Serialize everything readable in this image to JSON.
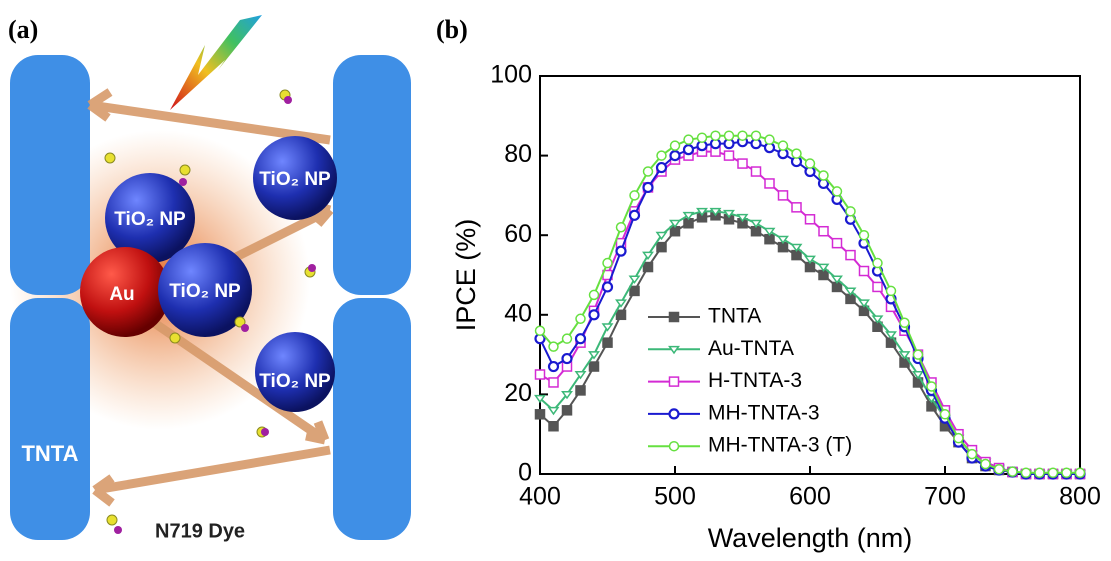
{
  "panel_labels": [
    "(a)",
    "(b)"
  ],
  "schematic": {
    "labels": [
      "TiO₂ NP",
      "TiO₂ NP",
      "TiO₂ NP",
      "TiO₂ NP",
      "Au",
      "TNTA",
      "N719 Dye"
    ]
  },
  "chart_data": {
    "type": "line",
    "x_label": "Wavelength (nm)",
    "y_label": "IPCE (%)",
    "x": [
      400,
      410,
      420,
      430,
      440,
      450,
      460,
      470,
      480,
      490,
      500,
      510,
      520,
      530,
      540,
      550,
      560,
      570,
      580,
      590,
      600,
      610,
      620,
      630,
      640,
      650,
      660,
      670,
      680,
      690,
      700,
      710,
      720,
      730,
      740,
      750,
      760,
      770,
      780,
      790,
      800
    ],
    "xlim": [
      400,
      800
    ],
    "xticks": [
      400,
      500,
      600,
      700,
      800
    ],
    "ylim": [
      0,
      100
    ],
    "yticks": [
      0,
      20,
      40,
      60,
      80,
      100
    ],
    "grid": false,
    "legend": "lower left",
    "series": [
      {
        "name": "TNTA",
        "color": "#555555",
        "marker": "square-filled",
        "values": [
          15,
          12,
          16,
          21,
          27,
          33,
          40,
          46,
          52,
          57,
          61,
          63,
          64.5,
          65,
          64,
          63,
          61,
          59,
          57,
          55,
          52,
          50,
          47,
          44,
          41,
          37,
          33,
          28,
          23,
          17,
          12,
          8,
          4,
          2,
          1,
          0.5,
          0,
          0,
          0,
          0,
          0
        ]
      },
      {
        "name": "Au-TNTA",
        "color": "#3cb878",
        "marker": "triangle-open",
        "values": [
          19,
          16,
          20,
          25,
          30,
          37,
          43,
          49,
          55,
          60,
          63,
          65,
          66,
          66,
          65.5,
          64.5,
          63,
          61,
          59,
          57,
          54,
          52,
          49,
          46,
          43,
          39,
          35,
          30,
          25,
          19,
          14,
          9,
          5,
          3,
          1.5,
          0.5,
          0,
          0,
          0,
          0,
          0
        ]
      },
      {
        "name": "H-TNTA-3",
        "color": "#d42ad4",
        "marker": "square-open",
        "values": [
          25,
          23,
          27,
          33,
          41,
          50,
          58,
          66,
          72,
          76,
          79,
          80,
          81,
          81,
          80,
          78,
          76,
          73,
          70,
          67,
          64,
          61,
          58,
          55,
          51,
          47,
          42,
          36,
          30,
          23,
          16,
          10,
          6,
          3,
          1.5,
          0.5,
          0,
          0,
          0,
          0,
          0
        ]
      },
      {
        "name": "MH-TNTA-3",
        "color": "#1a1ad0",
        "marker": "circle-half",
        "values": [
          34,
          27,
          29,
          34,
          40,
          47,
          56,
          65,
          72,
          77,
          80,
          81.5,
          82.5,
          83,
          83,
          83.5,
          83,
          82,
          80.5,
          78.5,
          76,
          73,
          69,
          64,
          58,
          51,
          44,
          37,
          29,
          21,
          14,
          8,
          4,
          2,
          1,
          0.5,
          0,
          0,
          0,
          0,
          0
        ]
      },
      {
        "name": "MH-TNTA-3 (T)",
        "color": "#66e040",
        "marker": "circle-open",
        "values": [
          36,
          32,
          34,
          39,
          45,
          53,
          62,
          70,
          76,
          80,
          82.5,
          84,
          84.5,
          85,
          85,
          85,
          85,
          84,
          82.5,
          80.5,
          78,
          75,
          71,
          66,
          60,
          53,
          46,
          38,
          30,
          22,
          15,
          9,
          5,
          2.5,
          1.2,
          0.6,
          0.3,
          0.3,
          0.3,
          0.3,
          0.3
        ]
      }
    ]
  }
}
